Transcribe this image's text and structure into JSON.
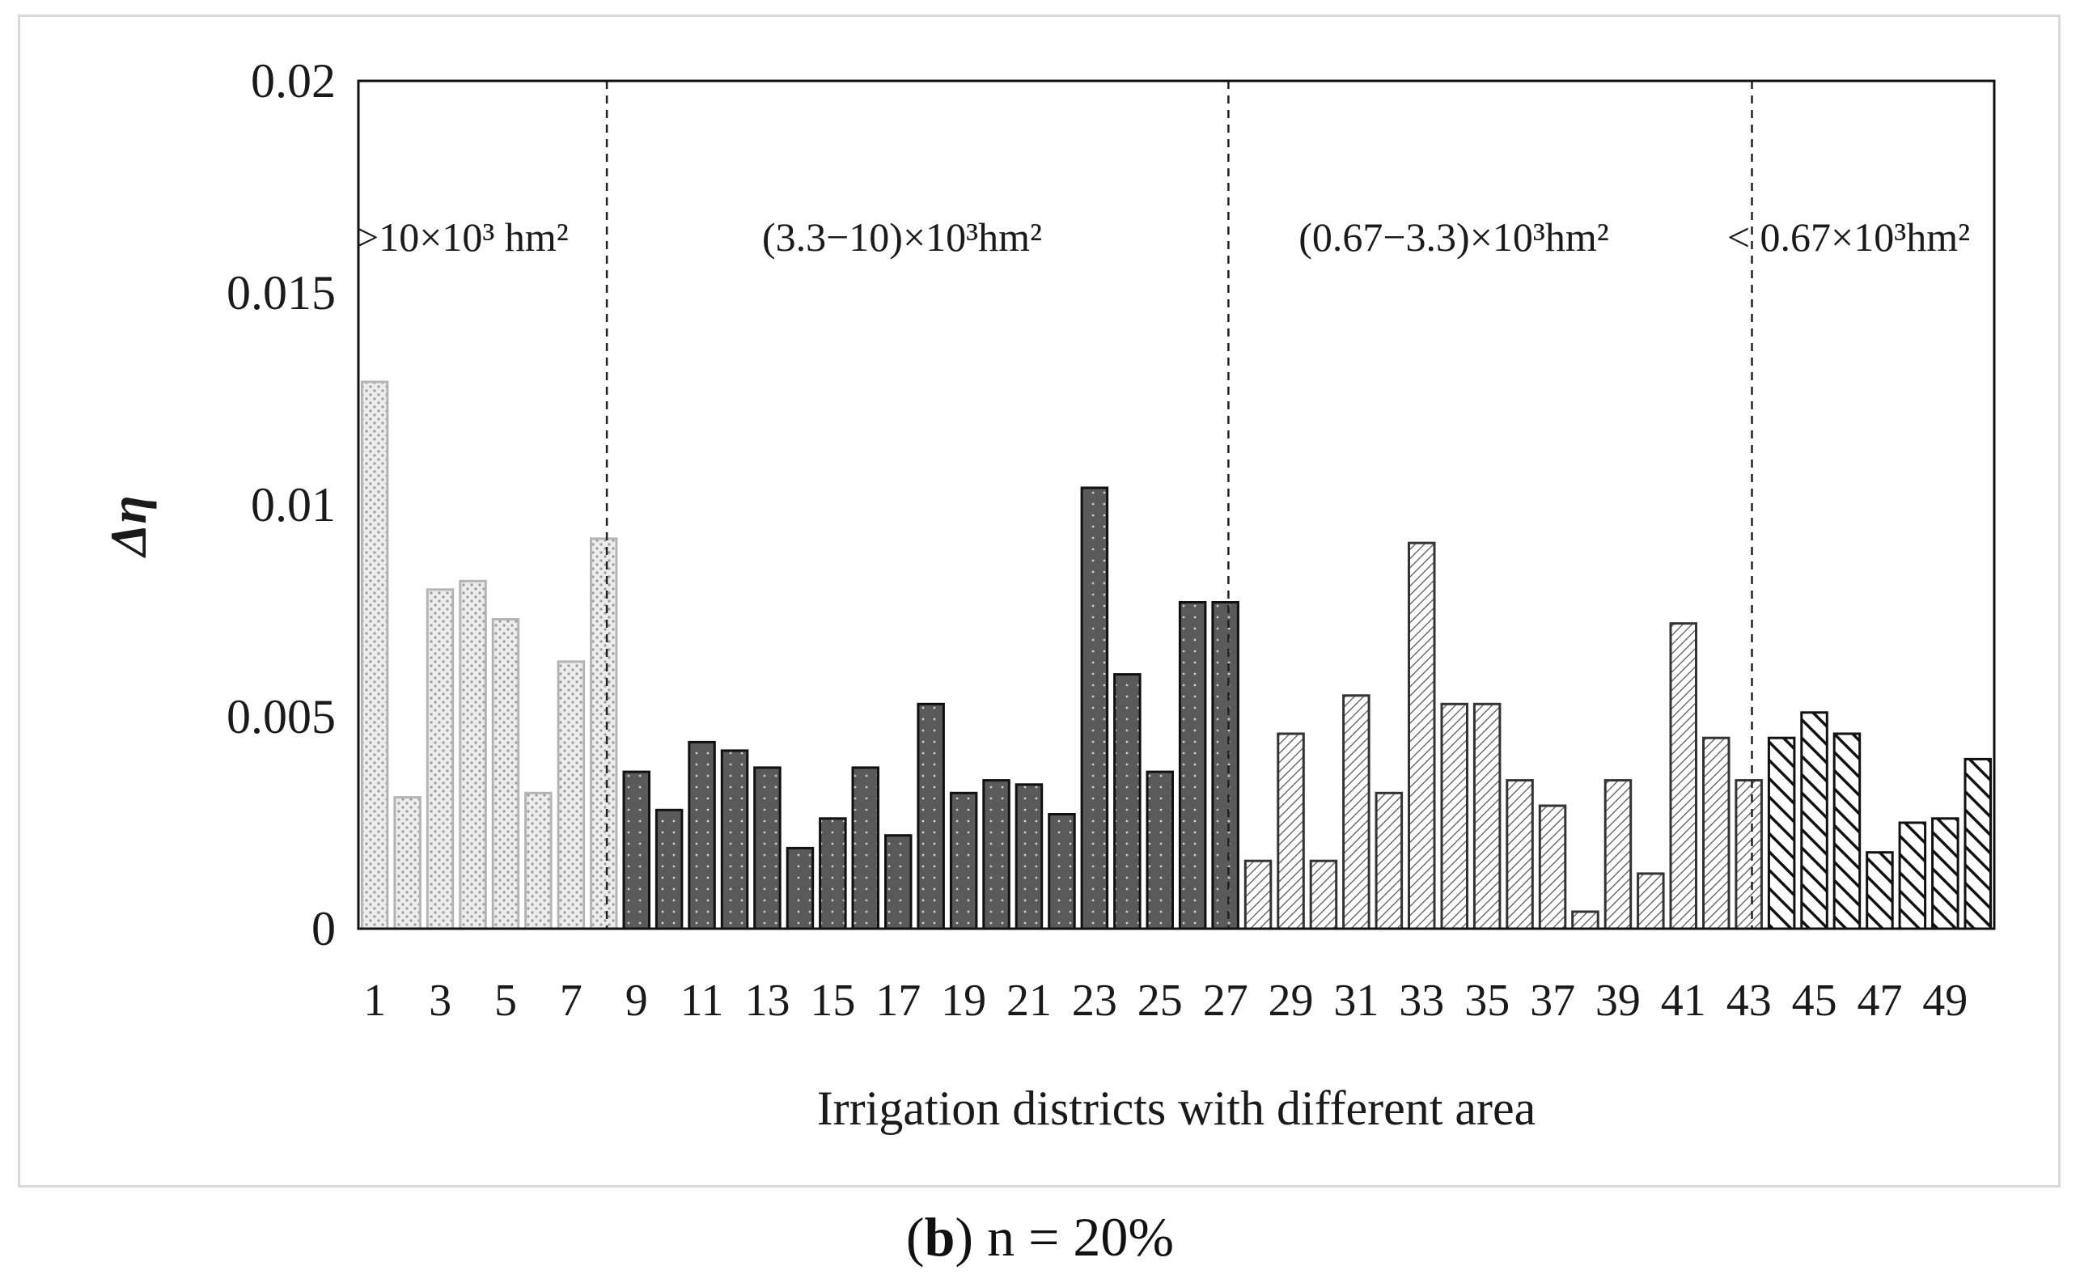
{
  "chart_data": {
    "type": "bar",
    "ylabel": "Δη",
    "xlabel": "Irrigation districts with different area",
    "ylim": [
      0,
      0.02
    ],
    "y_ticks": [
      "0",
      "0.005",
      "0.01",
      "0.015",
      "0.02"
    ],
    "y_tick_values": [
      0,
      0.005,
      0.01,
      0.015,
      0.02
    ],
    "x_tick_labels": [
      "1",
      "3",
      "5",
      "7",
      "9",
      "11",
      "13",
      "15",
      "17",
      "19",
      "21",
      "23",
      "25",
      "27",
      "29",
      "31",
      "33",
      "35",
      "37",
      "39",
      "41",
      "43",
      "45",
      "47",
      "49"
    ],
    "categories": [
      1,
      2,
      3,
      4,
      5,
      6,
      7,
      8,
      9,
      10,
      11,
      12,
      13,
      14,
      15,
      16,
      17,
      18,
      19,
      20,
      21,
      22,
      23,
      24,
      25,
      26,
      27,
      28,
      29,
      30,
      31,
      32,
      33,
      34,
      35,
      36,
      37,
      38,
      39,
      40,
      41,
      42,
      43,
      44,
      45,
      46,
      47,
      48,
      49,
      50
    ],
    "values": [
      0.0129,
      0.0031,
      0.008,
      0.0082,
      0.0073,
      0.0032,
      0.0063,
      0.0092,
      0.0037,
      0.0028,
      0.0044,
      0.0042,
      0.0038,
      0.0019,
      0.0026,
      0.0038,
      0.0022,
      0.0053,
      0.0032,
      0.0035,
      0.0034,
      0.0027,
      0.0104,
      0.006,
      0.0037,
      0.0077,
      0.0077,
      0.0016,
      0.0046,
      0.0016,
      0.0055,
      0.0032,
      0.0091,
      0.0053,
      0.0053,
      0.0035,
      0.0029,
      0.0004,
      0.0035,
      0.0013,
      0.0072,
      0.0045,
      0.0035,
      0.0045,
      0.0051,
      0.0046,
      0.0018,
      0.0025,
      0.0026,
      0.004
    ],
    "groups": [
      {
        "name": ">10×10³ hm²",
        "start": 1,
        "end": 8,
        "pattern": "light-dotted"
      },
      {
        "name": "(3.3−10)×10³hm²",
        "start": 9,
        "end": 27,
        "pattern": "dark-dotted"
      },
      {
        "name": "(0.67−3.3)×10³hm²",
        "start": 28,
        "end": 43,
        "pattern": "fine-hatch"
      },
      {
        "name": "< 0.67×10³hm²",
        "start": 44,
        "end": 50,
        "pattern": "bold-hatch"
      }
    ],
    "group_labels": [
      ">10×10³ hm²",
      "(3.3−10)×10³hm²",
      "(0.67−3.3)×10³hm²",
      "< 0.67×10³hm²"
    ]
  },
  "caption": {
    "letter": "b",
    "text": " n = 20%"
  }
}
